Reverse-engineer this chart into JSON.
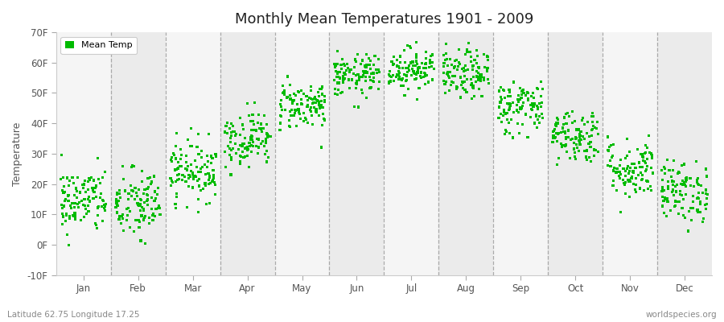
{
  "title": "Monthly Mean Temperatures 1901 - 2009",
  "ylabel": "Temperature",
  "xlabel_bottom": "Latitude 62.75 Longitude 17.25",
  "watermark": "worldspecies.org",
  "legend_label": "Mean Temp",
  "dot_color": "#00bb00",
  "background_color": "#ffffff",
  "plot_bg_color": "#f5f5f5",
  "plot_bg_stripe_color": "#ebebeb",
  "ylim": [
    -10,
    70
  ],
  "ytick_labels": [
    "-10F",
    "0F",
    "10F",
    "20F",
    "30F",
    "40F",
    "50F",
    "60F",
    "70F"
  ],
  "ytick_values": [
    -10,
    0,
    10,
    20,
    30,
    40,
    50,
    60,
    70
  ],
  "months": [
    "Jan",
    "Feb",
    "Mar",
    "Apr",
    "May",
    "Jun",
    "Jul",
    "Aug",
    "Sep",
    "Oct",
    "Nov",
    "Dec"
  ],
  "mean_temps_F": [
    14.5,
    13.0,
    24.5,
    35.0,
    46.0,
    55.5,
    58.0,
    56.0,
    45.5,
    36.0,
    25.0,
    17.5
  ],
  "std_temps_F": [
    5.5,
    6.0,
    5.0,
    4.5,
    4.0,
    3.5,
    3.5,
    4.0,
    4.5,
    4.5,
    5.0,
    5.0
  ],
  "n_years": 109,
  "seed": 42,
  "dot_size": 5,
  "dpi": 100,
  "figsize": [
    9.0,
    4.0
  ]
}
